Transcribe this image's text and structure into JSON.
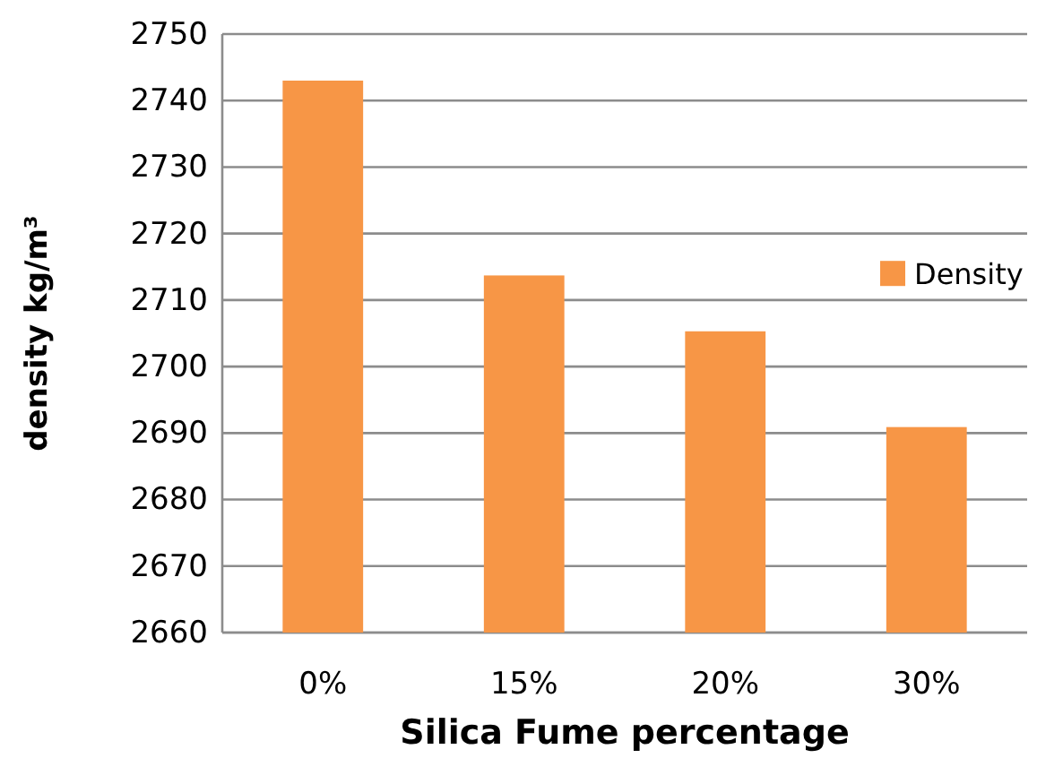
{
  "chart_data": {
    "type": "bar",
    "xlabel": "Silica Fume percentage",
    "ylabel": "density kg/m³",
    "categories": [
      "0%",
      "15%",
      "20%",
      "30%"
    ],
    "series": [
      {
        "name": "Density",
        "color": "#f79646",
        "values": [
          2743,
          2713.7,
          2705.3,
          2690.9
        ]
      }
    ],
    "ylim": [
      2660,
      2750
    ],
    "yticks": [
      2660,
      2670,
      2680,
      2690,
      2700,
      2710,
      2720,
      2730,
      2740,
      2750
    ],
    "grid": "y",
    "legend": "right"
  }
}
